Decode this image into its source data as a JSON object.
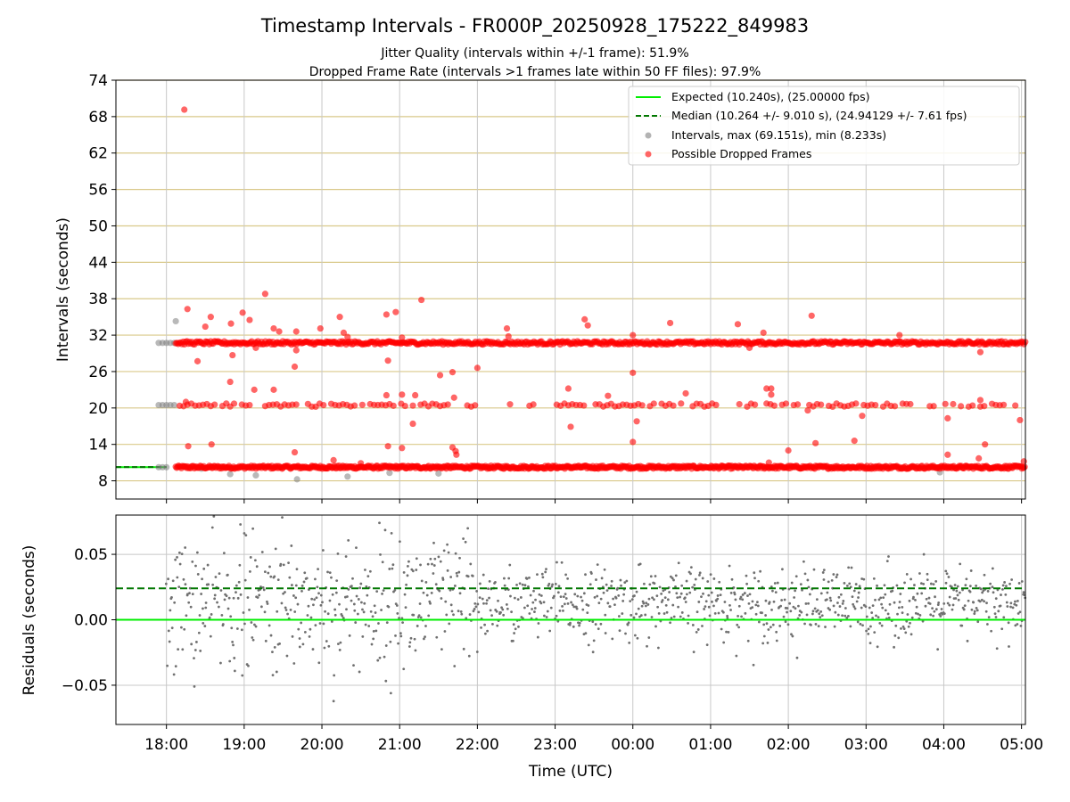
{
  "chart_data": [
    {
      "type": "scatter",
      "title": "Timestamp Intervals - FR000P_20250928_175222_849983",
      "subtitle_lines": [
        "Jitter Quality (intervals within +/-1 frame): 51.9%",
        "Dropped Frame Rate (intervals >1 frames late within 50 FF files): 97.9%"
      ],
      "ylabel": "Intervals (seconds)",
      "xlabel": "",
      "xlim_hours": [
        -0.65,
        11.05
      ],
      "ylim": [
        5,
        74
      ],
      "yticks": [
        8,
        14,
        20,
        26,
        32,
        38,
        44,
        50,
        56,
        62,
        68,
        74
      ],
      "legend_position": "top-right",
      "grid": true,
      "horizontal_grid_color": "#d9c98a",
      "series": [
        {
          "name": "Expected (10.240s), (25.00000 fps)",
          "kind": "line",
          "y": 10.24,
          "color": "#00ee00",
          "style": "solid"
        },
        {
          "name": "Median (10.264 +/- 9.010 s), (24.94129 +/- 7.61 fps)",
          "kind": "line",
          "y": 10.264,
          "color": "#007700",
          "style": "dashed"
        },
        {
          "name": "Intervals, max (69.151s), min (8.233s)",
          "kind": "scatter",
          "color": "#808080",
          "max": 69.151,
          "min": 8.233
        },
        {
          "name": "Possible Dropped Frames",
          "kind": "scatter",
          "color": "#ff0000",
          "bands": [
            10.24,
            20.48,
            30.72
          ],
          "band_start_hour": 0.12,
          "band_end_hour": 11.05
        }
      ],
      "gray_points": [
        {
          "x": -0.1,
          "y": 30.72
        },
        {
          "x": -0.05,
          "y": 30.72
        },
        {
          "x": 0.0,
          "y": 30.72
        },
        {
          "x": 0.05,
          "y": 30.72
        },
        {
          "x": 0.1,
          "y": 30.72
        },
        {
          "x": -0.1,
          "y": 20.48
        },
        {
          "x": -0.05,
          "y": 20.48
        },
        {
          "x": 0.0,
          "y": 20.48
        },
        {
          "x": 0.05,
          "y": 20.48
        },
        {
          "x": 0.1,
          "y": 20.48
        },
        {
          "x": -0.1,
          "y": 10.24
        },
        {
          "x": -0.05,
          "y": 10.24
        },
        {
          "x": 0.0,
          "y": 10.24
        },
        {
          "x": 0.12,
          "y": 34.3
        },
        {
          "x": 0.45,
          "y": 10.0
        },
        {
          "x": 0.82,
          "y": 9.1
        },
        {
          "x": 1.15,
          "y": 8.9
        },
        {
          "x": 1.68,
          "y": 8.25
        },
        {
          "x": 2.33,
          "y": 8.7
        },
        {
          "x": 2.87,
          "y": 9.3
        },
        {
          "x": 3.5,
          "y": 9.2
        },
        {
          "x": 9.95,
          "y": 9.4
        }
      ],
      "red_outliers": [
        {
          "x": 0.23,
          "y": 69.15
        },
        {
          "x": 0.27,
          "y": 36.3
        },
        {
          "x": 0.25,
          "y": 21.0
        },
        {
          "x": 0.28,
          "y": 13.7
        },
        {
          "x": 0.4,
          "y": 27.7
        },
        {
          "x": 0.5,
          "y": 33.4
        },
        {
          "x": 0.57,
          "y": 35.0
        },
        {
          "x": 0.58,
          "y": 14.0
        },
        {
          "x": 0.82,
          "y": 24.3
        },
        {
          "x": 0.85,
          "y": 28.7
        },
        {
          "x": 0.83,
          "y": 33.9
        },
        {
          "x": 0.98,
          "y": 35.7
        },
        {
          "x": 1.07,
          "y": 34.5
        },
        {
          "x": 1.13,
          "y": 23.0
        },
        {
          "x": 1.15,
          "y": 29.9
        },
        {
          "x": 1.27,
          "y": 38.8
        },
        {
          "x": 1.38,
          "y": 33.1
        },
        {
          "x": 1.45,
          "y": 32.6
        },
        {
          "x": 1.38,
          "y": 23.0
        },
        {
          "x": 1.65,
          "y": 26.8
        },
        {
          "x": 1.67,
          "y": 29.5
        },
        {
          "x": 1.65,
          "y": 12.7
        },
        {
          "x": 1.67,
          "y": 32.6
        },
        {
          "x": 1.98,
          "y": 33.1
        },
        {
          "x": 2.15,
          "y": 11.4
        },
        {
          "x": 2.23,
          "y": 35.0
        },
        {
          "x": 2.28,
          "y": 32.4
        },
        {
          "x": 2.33,
          "y": 31.7
        },
        {
          "x": 2.5,
          "y": 10.9
        },
        {
          "x": 2.83,
          "y": 35.4
        },
        {
          "x": 2.85,
          "y": 27.8
        },
        {
          "x": 2.83,
          "y": 22.1
        },
        {
          "x": 2.85,
          "y": 13.7
        },
        {
          "x": 2.95,
          "y": 35.8
        },
        {
          "x": 3.03,
          "y": 22.2
        },
        {
          "x": 3.03,
          "y": 13.4
        },
        {
          "x": 3.03,
          "y": 31.6
        },
        {
          "x": 3.17,
          "y": 17.4
        },
        {
          "x": 3.2,
          "y": 22.1
        },
        {
          "x": 3.28,
          "y": 37.8
        },
        {
          "x": 3.52,
          "y": 25.4
        },
        {
          "x": 3.68,
          "y": 25.9
        },
        {
          "x": 3.7,
          "y": 21.7
        },
        {
          "x": 3.68,
          "y": 13.5
        },
        {
          "x": 3.72,
          "y": 12.9
        },
        {
          "x": 3.73,
          "y": 12.3
        },
        {
          "x": 4.0,
          "y": 26.6
        },
        {
          "x": 4.38,
          "y": 33.1
        },
        {
          "x": 4.4,
          "y": 31.8
        },
        {
          "x": 5.17,
          "y": 23.2
        },
        {
          "x": 5.2,
          "y": 16.9
        },
        {
          "x": 5.38,
          "y": 34.6
        },
        {
          "x": 5.42,
          "y": 33.6
        },
        {
          "x": 5.68,
          "y": 22.0
        },
        {
          "x": 6.0,
          "y": 32.0
        },
        {
          "x": 6.0,
          "y": 25.8
        },
        {
          "x": 6.0,
          "y": 14.4
        },
        {
          "x": 6.05,
          "y": 17.8
        },
        {
          "x": 6.48,
          "y": 34.0
        },
        {
          "x": 6.68,
          "y": 22.4
        },
        {
          "x": 7.35,
          "y": 33.8
        },
        {
          "x": 7.5,
          "y": 29.9
        },
        {
          "x": 7.68,
          "y": 32.4
        },
        {
          "x": 7.72,
          "y": 23.2
        },
        {
          "x": 7.78,
          "y": 22.2
        },
        {
          "x": 7.78,
          "y": 23.2
        },
        {
          "x": 7.75,
          "y": 11.0
        },
        {
          "x": 8.0,
          "y": 13.0
        },
        {
          "x": 8.3,
          "y": 35.2
        },
        {
          "x": 8.25,
          "y": 19.6
        },
        {
          "x": 8.35,
          "y": 14.2
        },
        {
          "x": 8.85,
          "y": 14.6
        },
        {
          "x": 8.95,
          "y": 18.7
        },
        {
          "x": 9.43,
          "y": 32.0
        },
        {
          "x": 10.05,
          "y": 18.3
        },
        {
          "x": 10.05,
          "y": 12.3
        },
        {
          "x": 10.47,
          "y": 29.2
        },
        {
          "x": 10.47,
          "y": 21.3
        },
        {
          "x": 10.45,
          "y": 11.7
        },
        {
          "x": 10.53,
          "y": 14.0
        },
        {
          "x": 10.98,
          "y": 18.0
        },
        {
          "x": 11.03,
          "y": 11.2
        }
      ]
    },
    {
      "type": "scatter",
      "ylabel": "Residuals (seconds)",
      "xlabel": "Time (UTC)",
      "xlim_hours": [
        -0.65,
        11.05
      ],
      "ylim": [
        -0.08,
        0.08
      ],
      "yticks": [
        -0.05,
        0.0,
        0.05
      ],
      "ytick_labels": [
        "−0.05",
        "0.00",
        "0.05"
      ],
      "xticks_hours": [
        0,
        1,
        2,
        3,
        4,
        5,
        6,
        7,
        8,
        9,
        10,
        11
      ],
      "xtick_labels": [
        "18:00",
        "19:00",
        "20:00",
        "21:00",
        "22:00",
        "23:00",
        "00:00",
        "01:00",
        "02:00",
        "03:00",
        "04:00",
        "05:00"
      ],
      "grid": true,
      "expected_line": {
        "y": 0.0,
        "color": "#00ee00",
        "style": "solid"
      },
      "median_line": {
        "y": 0.024,
        "color": "#007700",
        "style": "dashed"
      },
      "points_color": "#707070",
      "residual_start_hour": 0.0,
      "residual_end_hour": 11.05
    }
  ]
}
